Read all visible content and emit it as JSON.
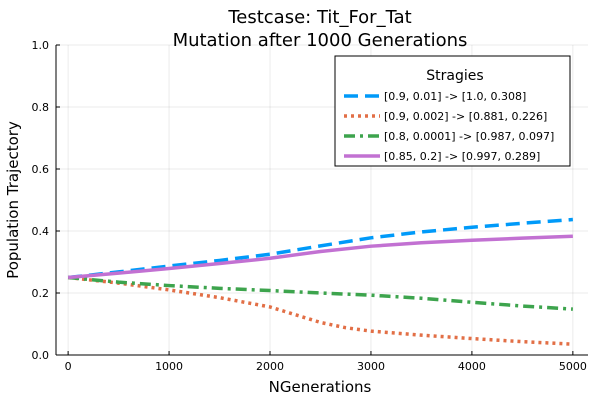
{
  "chart_data": {
    "type": "line",
    "title": [
      "Testcase: Tit_For_Tat",
      "Mutation after 1000 Generations"
    ],
    "xlabel": "NGenerations",
    "ylabel": "Population Trajectory",
    "xlim": [
      -120,
      5150
    ],
    "ylim": [
      0.0,
      1.0
    ],
    "xticks": [
      0,
      1000,
      2000,
      3000,
      4000,
      5000
    ],
    "xtick_labels": [
      "0",
      "1000",
      "2000",
      "3000",
      "4000",
      "5000"
    ],
    "yticks": [
      0.0,
      0.2,
      0.4,
      0.6,
      0.8,
      1.0
    ],
    "ytick_labels": [
      "0.0",
      "0.2",
      "0.4",
      "0.6",
      "0.8",
      "1.0"
    ],
    "grid": true,
    "legend": {
      "title": "Stragies",
      "placement": "top-right"
    },
    "series": [
      {
        "name": "[0.9, 0.01] -> [1.0, 0.308]",
        "color": "#009af9",
        "style": "dash",
        "x": [
          0,
          500,
          1000,
          1500,
          2000,
          2500,
          3000,
          3500,
          4000,
          4500,
          5000
        ],
        "y": [
          0.25,
          0.268,
          0.287,
          0.305,
          0.325,
          0.352,
          0.378,
          0.397,
          0.412,
          0.425,
          0.437
        ]
      },
      {
        "name": "[0.9, 0.002] -> [0.881, 0.226]",
        "color": "#e26f46",
        "style": "dot",
        "x": [
          0,
          500,
          1000,
          1500,
          2000,
          2250,
          2500,
          2750,
          3000,
          3500,
          4000,
          4500,
          5000
        ],
        "y": [
          0.25,
          0.232,
          0.21,
          0.185,
          0.155,
          0.13,
          0.105,
          0.088,
          0.077,
          0.064,
          0.053,
          0.043,
          0.035
        ]
      },
      {
        "name": "[0.8, 0.0001] -> [0.987, 0.097]",
        "color": "#3da44d",
        "style": "dashdot",
        "x": [
          0,
          500,
          1000,
          1500,
          2000,
          2500,
          3000,
          3500,
          4000,
          4500,
          5000
        ],
        "y": [
          0.25,
          0.235,
          0.224,
          0.215,
          0.208,
          0.2,
          0.193,
          0.183,
          0.17,
          0.158,
          0.148
        ]
      },
      {
        "name": "[0.85, 0.2] -> [0.997, 0.289]",
        "color": "#c271d2",
        "style": "solid",
        "x": [
          0,
          500,
          1000,
          1500,
          2000,
          2500,
          3000,
          3500,
          4000,
          4500,
          5000
        ],
        "y": [
          0.25,
          0.264,
          0.279,
          0.295,
          0.312,
          0.334,
          0.351,
          0.362,
          0.37,
          0.377,
          0.383
        ]
      }
    ]
  }
}
